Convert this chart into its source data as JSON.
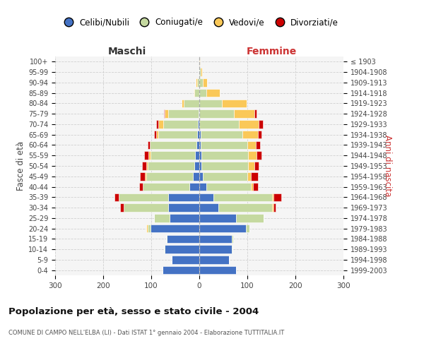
{
  "age_groups": [
    "100+",
    "95-99",
    "90-94",
    "85-89",
    "80-84",
    "75-79",
    "70-74",
    "65-69",
    "60-64",
    "55-59",
    "50-54",
    "45-49",
    "40-44",
    "35-39",
    "30-34",
    "25-29",
    "20-24",
    "15-19",
    "10-14",
    "5-9",
    "0-4"
  ],
  "birth_years": [
    "≤ 1903",
    "1904-1908",
    "1909-1913",
    "1914-1918",
    "1919-1923",
    "1924-1928",
    "1929-1933",
    "1934-1938",
    "1939-1943",
    "1944-1948",
    "1949-1953",
    "1954-1958",
    "1959-1963",
    "1964-1968",
    "1969-1973",
    "1974-1978",
    "1979-1983",
    "1984-1988",
    "1989-1993",
    "1994-1998",
    "1999-2003"
  ],
  "male": {
    "celibi": [
      0,
      0,
      0,
      0,
      0,
      2,
      3,
      4,
      6,
      9,
      11,
      13,
      20,
      65,
      65,
      62,
      102,
      67,
      72,
      57,
      77
    ],
    "coniugati": [
      0,
      2,
      5,
      10,
      32,
      62,
      72,
      82,
      97,
      92,
      97,
      97,
      97,
      102,
      92,
      32,
      6,
      2,
      2,
      0,
      0
    ],
    "vedovi": [
      0,
      0,
      2,
      2,
      5,
      8,
      10,
      3,
      0,
      5,
      3,
      3,
      0,
      0,
      0,
      0,
      2,
      0,
      0,
      0,
      0
    ],
    "divorziati": [
      0,
      0,
      0,
      0,
      0,
      2,
      5,
      5,
      5,
      8,
      8,
      10,
      8,
      10,
      8,
      0,
      0,
      0,
      0,
      0,
      0
    ]
  },
  "female": {
    "nubili": [
      0,
      0,
      0,
      0,
      0,
      0,
      0,
      3,
      3,
      5,
      5,
      8,
      15,
      30,
      40,
      77,
      97,
      67,
      67,
      62,
      77
    ],
    "coniugate": [
      0,
      3,
      8,
      15,
      47,
      72,
      82,
      87,
      97,
      97,
      97,
      92,
      92,
      122,
      112,
      57,
      8,
      3,
      2,
      0,
      0
    ],
    "vedove": [
      1,
      3,
      8,
      27,
      52,
      42,
      42,
      32,
      17,
      17,
      12,
      7,
      5,
      3,
      2,
      0,
      0,
      0,
      0,
      0,
      0
    ],
    "divorziate": [
      0,
      0,
      0,
      0,
      0,
      5,
      8,
      8,
      10,
      10,
      10,
      15,
      10,
      15,
      5,
      0,
      0,
      0,
      0,
      0,
      0
    ]
  },
  "colors": {
    "celibi": "#4472C4",
    "coniugati": "#C5D9A0",
    "vedovi": "#FAC858",
    "divorziati": "#CC0000"
  },
  "legend_labels": [
    "Celibi/Nubili",
    "Coniugati/e",
    "Vedovi/e",
    "Divorziati/e"
  ],
  "title": "Popolazione per età, sesso e stato civile - 2004",
  "subtitle": "COMUNE DI CAMPO NELL'ELBA (LI) - Dati ISTAT 1° gennaio 2004 - Elaborazione TUTTITALIA.IT",
  "label_maschi": "Maschi",
  "label_femmine": "Femmine",
  "ylabel_left": "Fasce di età",
  "ylabel_right": "Anni di nascita",
  "xlim": 300,
  "xticks": [
    -300,
    -200,
    -100,
    0,
    100,
    200,
    300
  ],
  "bg_color": "#ffffff",
  "plot_bg_color": "#f5f5f5",
  "grid_color": "#cccccc"
}
